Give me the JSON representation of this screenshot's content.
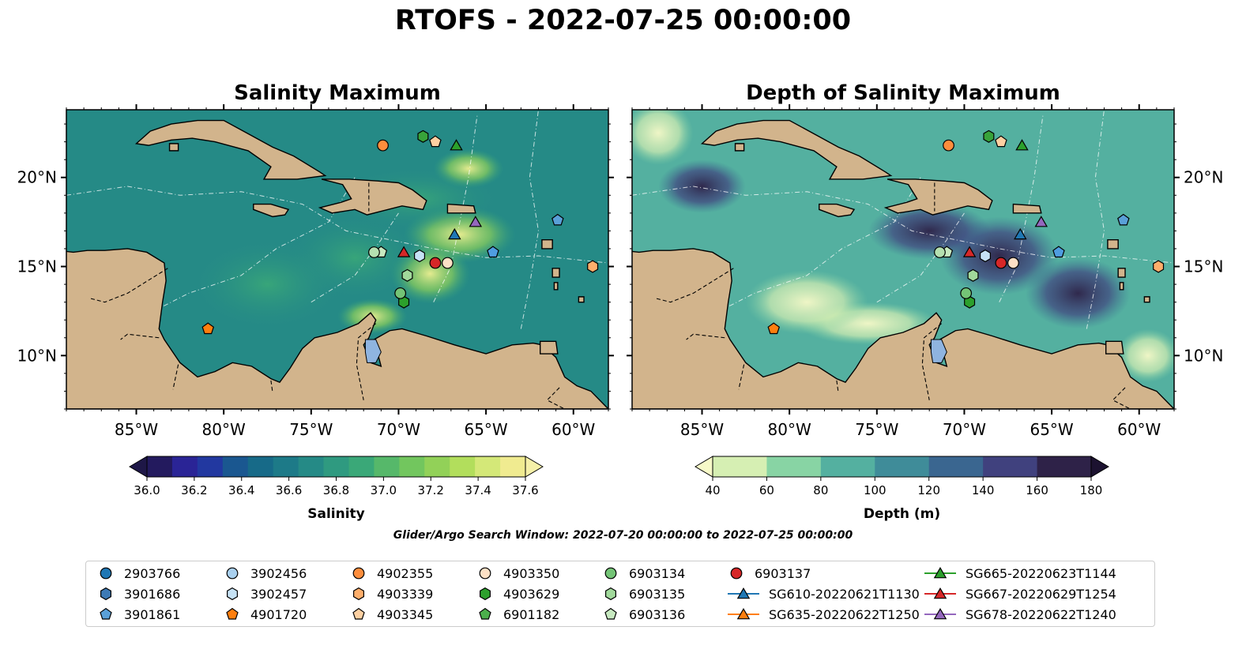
{
  "title": "RTOFS - 2022-07-25 00:00:00",
  "panels": [
    {
      "title": "Salinity Maximum"
    },
    {
      "title": "Depth of Salinity Maximum"
    }
  ],
  "map": {
    "lon_range": [
      -89,
      -58
    ],
    "lat_range": [
      7,
      23.8
    ],
    "lon_ticks": [
      {
        "v": -85,
        "label": "85°W"
      },
      {
        "v": -80,
        "label": "80°W"
      },
      {
        "v": -75,
        "label": "75°W"
      },
      {
        "v": -70,
        "label": "70°W"
      },
      {
        "v": -65,
        "label": "65°W"
      },
      {
        "v": -60,
        "label": "60°W"
      }
    ],
    "lat_ticks": [
      {
        "v": 20,
        "label": "20°N"
      },
      {
        "v": 15,
        "label": "15°N"
      },
      {
        "v": 10,
        "label": "10°N"
      }
    ],
    "land_color": "#d2b48c",
    "lake_color": "#8fb4e0"
  },
  "colorbars": [
    {
      "label": "Salinity",
      "ticks": [
        "36.0",
        "36.2",
        "36.4",
        "36.6",
        "36.8",
        "37.0",
        "37.2",
        "37.4",
        "37.6"
      ],
      "colors": [
        "#231a5e",
        "#2a2496",
        "#2238a0",
        "#1a5790",
        "#176a88",
        "#1d7a88",
        "#258a86",
        "#2f9a80",
        "#3aa878",
        "#56b86a",
        "#72c65e",
        "#92d158",
        "#b2de5c",
        "#d4e878",
        "#f0eb90"
      ],
      "under": "#1e1747",
      "over": "#f5f0a8"
    },
    {
      "label": "Depth (m)",
      "ticks": [
        "40",
        "60",
        "80",
        "100",
        "120",
        "140",
        "160",
        "180"
      ],
      "colors": [
        "#d6efb3",
        "#88d4a4",
        "#54b0a0",
        "#3f8c99",
        "#3a6690",
        "#40417e",
        "#2e2248"
      ],
      "under": "#f7f9c8",
      "over": "#1c1230"
    }
  ],
  "search_window": "Glider/Argo Search Window: 2022-07-20 00:00:00 to 2022-07-25 00:00:00",
  "floats": [
    {
      "id": "2903766",
      "marker": "circle",
      "color": "#1f77b4",
      "lon": null,
      "lat": null
    },
    {
      "id": "3901686",
      "marker": "hexagon",
      "color": "#3d7ab5",
      "lon": null,
      "lat": null
    },
    {
      "id": "3901861",
      "marker": "pentagon",
      "color": "#5aa0d8",
      "lon": -60.9,
      "lat": 17.6
    },
    {
      "id": "3902456",
      "marker": "circle",
      "color": "#a9d0ef",
      "lon": null,
      "lat": null
    },
    {
      "id": "3902457",
      "marker": "hexagon",
      "color": "#c6e2f5",
      "lon": -68.8,
      "lat": 15.6
    },
    {
      "id": "4901720",
      "marker": "pentagon",
      "color": "#ff7f0e",
      "lon": -80.9,
      "lat": 11.5
    },
    {
      "id": "4902355",
      "marker": "circle",
      "color": "#fd8d3c",
      "lon": -70.9,
      "lat": 21.8
    },
    {
      "id": "4903339",
      "marker": "hexagon",
      "color": "#fdae6b",
      "lon": -58.9,
      "lat": 15.0
    },
    {
      "id": "4903345",
      "marker": "pentagon",
      "color": "#fdd0a2",
      "lon": -67.9,
      "lat": 22.0
    },
    {
      "id": "4903350",
      "marker": "circle",
      "color": "#fde0c5",
      "lon": -67.2,
      "lat": 15.2
    },
    {
      "id": "4903629",
      "marker": "hexagon",
      "color": "#2ca02c",
      "lon": -69.7,
      "lat": 13.0
    },
    {
      "id": "6901182",
      "marker": "pentagon",
      "color": "#4caf4c",
      "lon": null,
      "lat": null
    },
    {
      "id": "6903134",
      "marker": "circle",
      "color": "#74c476",
      "lon": -69.9,
      "lat": 13.5
    },
    {
      "id": "6903135",
      "marker": "hexagon",
      "color": "#a1d99b",
      "lon": -69.5,
      "lat": 14.5
    },
    {
      "id": "6903136",
      "marker": "pentagon",
      "color": "#c7e9c0",
      "lon": -71.0,
      "lat": 15.8
    },
    {
      "id": "6903137",
      "marker": "circle",
      "color": "#d62728",
      "lon": -67.9,
      "lat": 15.2
    }
  ],
  "gliders": [
    {
      "id": "SG610-20220621T1130",
      "color": "#1f77b4",
      "lon": -66.8,
      "lat": 16.8
    },
    {
      "id": "SG635-20220622T1250",
      "color": "#ff7f0e",
      "lon": null,
      "lat": null
    },
    {
      "id": "SG665-20220623T1144",
      "color": "#2ca02c",
      "lon": -66.7,
      "lat": 21.8
    },
    {
      "id": "SG667-20220629T1254",
      "color": "#d62728",
      "lon": -69.7,
      "lat": 15.8
    },
    {
      "id": "SG678-20220622T1240",
      "color": "#9467bd",
      "lon": -65.6,
      "lat": 17.5
    }
  ],
  "extra_markers": [
    {
      "marker": "circle",
      "color": "#b5e0b0",
      "lon": -71.4,
      "lat": 15.8
    },
    {
      "marker": "hexagon",
      "color": "#38a33a",
      "lon": -68.6,
      "lat": 22.3
    },
    {
      "marker": "pentagon",
      "color": "#4f9de0",
      "lon": -64.6,
      "lat": 15.8
    }
  ]
}
